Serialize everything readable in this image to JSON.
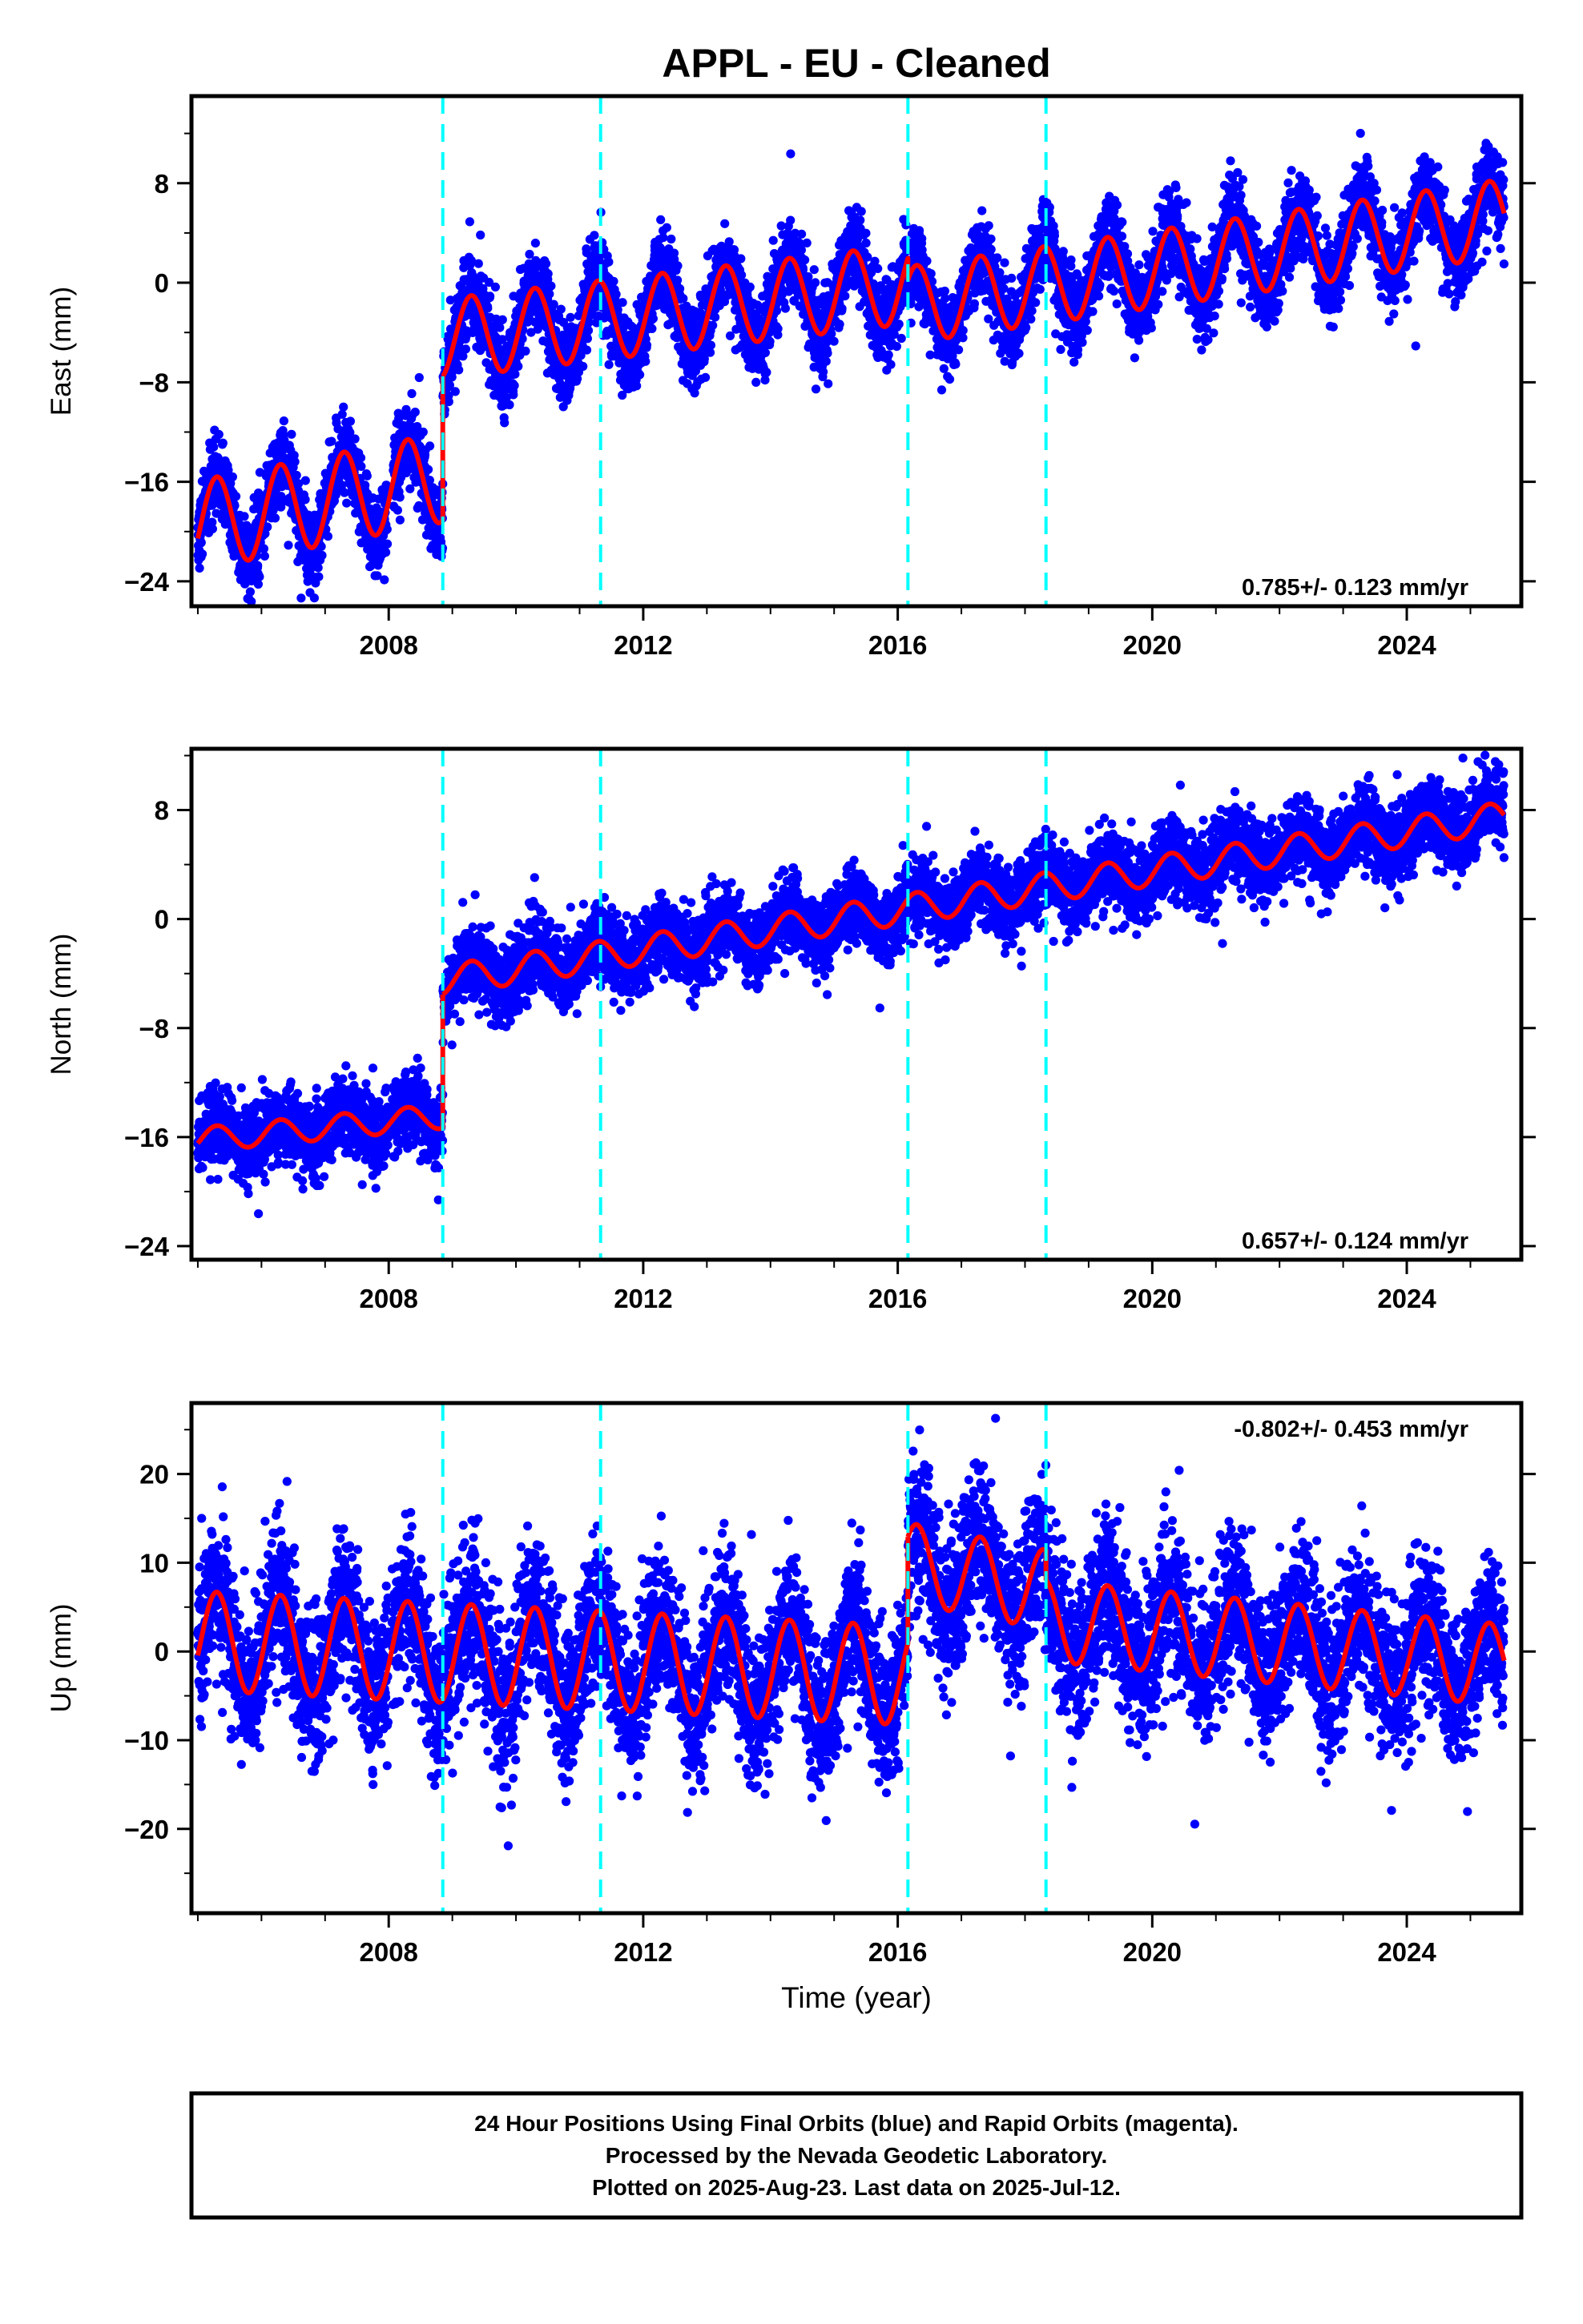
{
  "header": {
    "title": "APPL  - EU - Cleaned"
  },
  "colors": {
    "final_orbits": "#0000ff",
    "model": "#ff0000",
    "offsets": "#00ffff"
  },
  "chart_data": [
    {
      "type": "scatter",
      "component": "east",
      "ylabel": "East (mm)",
      "ylim": [
        -26,
        15
      ],
      "xlim": [
        2004.9,
        2025.8
      ],
      "y_ticks": [
        -24,
        -16,
        -8,
        0,
        8
      ],
      "y_tick_labels": [
        "−24",
        "−16",
        "−8",
        "0",
        "8"
      ],
      "x_ticks": [
        2008,
        2012,
        2016,
        2020,
        2024
      ],
      "x_tick_labels": [
        "2008",
        "2012",
        "2016",
        "2020",
        "2024"
      ],
      "rate_label": "0.785+/- 0.123 mm/yr",
      "rate_position": "bottom-right",
      "offset_epochs": [
        2008.85,
        2011.33,
        2016.16,
        2018.33
      ],
      "data_start": 2005.0,
      "data_end": 2025.53,
      "gap": [
        2007.98,
        2008.07
      ],
      "spread_mm": 1.6,
      "segments": [
        {
          "start": 2005.0,
          "end": 2008.85,
          "value_at_start": -19.5,
          "rate": 1.0,
          "annual_amplitude": 3.6
        },
        {
          "start": 2008.85,
          "end": 2016.16,
          "value_at_start": -4.5,
          "rate": 0.6,
          "annual_amplitude": 3.2
        },
        {
          "start": 2016.16,
          "end": 2025.53,
          "value_at_start": -1.8,
          "rate": 0.75,
          "annual_amplitude": 3.1
        }
      ]
    },
    {
      "type": "scatter",
      "component": "north",
      "ylabel": "North (mm)",
      "ylim": [
        -25,
        12.5
      ],
      "xlim": [
        2004.9,
        2025.8
      ],
      "y_ticks": [
        -24,
        -16,
        -8,
        0,
        8
      ],
      "y_tick_labels": [
        "−24",
        "−16",
        "−8",
        "0",
        "8"
      ],
      "x_ticks": [
        2008,
        2012,
        2016,
        2020,
        2024
      ],
      "x_tick_labels": [
        "2008",
        "2012",
        "2016",
        "2020",
        "2024"
      ],
      "rate_label": "0.657+/- 0.124 mm/yr",
      "rate_position": "bottom-right",
      "offset_epochs": [
        2008.85,
        2011.33,
        2016.16,
        2018.33
      ],
      "data_start": 2005.0,
      "data_end": 2025.53,
      "gap": [
        2008.0,
        2008.05
      ],
      "spread_mm": 1.4,
      "segments": [
        {
          "start": 2005.0,
          "end": 2008.85,
          "value_at_start": -16.2,
          "rate": 0.45,
          "annual_amplitude": 0.9
        },
        {
          "start": 2008.85,
          "end": 2025.53,
          "value_at_start": -4.5,
          "rate": 0.72,
          "annual_amplitude": 1.1
        }
      ]
    },
    {
      "type": "scatter",
      "component": "up",
      "ylabel": "Up (mm)",
      "ylim": [
        -29.5,
        28
      ],
      "xlim": [
        2004.9,
        2025.8
      ],
      "y_ticks": [
        -20,
        -10,
        0,
        10,
        20
      ],
      "y_tick_labels": [
        "−20",
        "−10",
        "0",
        "10",
        "20"
      ],
      "x_ticks": [
        2008,
        2012,
        2016,
        2020,
        2024
      ],
      "x_tick_labels": [
        "2008",
        "2012",
        "2016",
        "2020",
        "2024"
      ],
      "xlabel": "Time (year)",
      "rate_label": "-0.802+/- 0.453 mm/yr",
      "rate_position": "top-right",
      "offset_epochs": [
        2008.85,
        2011.33,
        2016.16,
        2018.33
      ],
      "data_start": 2005.0,
      "data_end": 2025.53,
      "gap": [
        2008.0,
        2008.05
      ],
      "spread_mm": 4.2,
      "segments": [
        {
          "start": 2005.0,
          "end": 2016.16,
          "value_at_start": 1.2,
          "rate": -0.35,
          "annual_amplitude": 5.6
        },
        {
          "start": 2016.16,
          "end": 2018.33,
          "value_at_start": 10.0,
          "rate": -1.4,
          "annual_amplitude": 4.5
        },
        {
          "start": 2018.33,
          "end": 2025.53,
          "value_at_start": 3.5,
          "rate": -0.7,
          "annual_amplitude": 4.6
        }
      ]
    }
  ],
  "footer": {
    "line1": "24 Hour Positions Using Final Orbits (blue) and Rapid Orbits (magenta).",
    "line2": "Processed by the Nevada Geodetic Laboratory.",
    "line3": "Plotted on 2025-Aug-23. Last data on 2025-Jul-12."
  }
}
